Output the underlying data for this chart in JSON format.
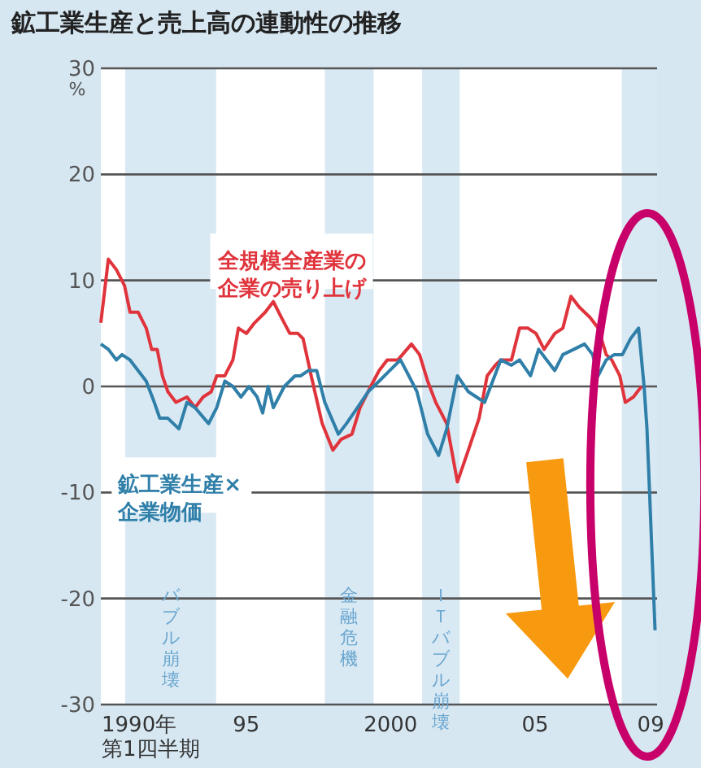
{
  "chart_data": {
    "type": "line",
    "title": "鉱工業生産と売上高の連動性の推移",
    "ylabel": "%",
    "xlim": [
      1990,
      2009.25
    ],
    "xticks": [
      {
        "value": 1990,
        "label": "1990年第1四半期"
      },
      {
        "value": 1995,
        "label": "95"
      },
      {
        "value": 2000,
        "label": "2000"
      },
      {
        "value": 2005,
        "label": "05"
      },
      {
        "value": 2009,
        "label": "09"
      }
    ],
    "ylim": [
      -30,
      30
    ],
    "yticks": [
      -30,
      -20,
      -10,
      0,
      10,
      20,
      30
    ],
    "grid": "y",
    "legend": false,
    "marker": "none",
    "series": [
      {
        "name": "全規模全産業の企業の売り上げ",
        "color": "#e0343c",
        "x": [
          1990.0,
          1990.26,
          1990.54,
          1990.82,
          1991.01,
          1991.29,
          1991.57,
          1991.76,
          1991.95,
          1992.13,
          1992.32,
          1992.6,
          1992.98,
          1993.26,
          1993.54,
          1993.82,
          1994.01,
          1994.29,
          1994.57,
          1994.76,
          1995.04,
          1995.32,
          1995.69,
          1995.97,
          1996.25,
          1996.54,
          1996.82,
          1997.0,
          1997.28,
          1997.66,
          1998.03,
          1998.31,
          1998.69,
          1998.97,
          1999.34,
          1999.63,
          1999.91,
          2000.28,
          2000.75,
          2001.03,
          2001.31,
          2001.59,
          2001.97,
          2002.34,
          2002.72,
          2003.09,
          2003.37,
          2003.65,
          2003.84,
          2004.21,
          2004.49,
          2004.78,
          2005.06,
          2005.34,
          2005.71,
          2005.99,
          2006.27,
          2006.55,
          2006.93,
          2007.21,
          2007.49,
          2007.68,
          2007.96,
          2008.15,
          2008.43,
          2008.71
        ],
        "values": [
          6,
          12,
          11,
          9.5,
          7,
          7,
          5.5,
          3.5,
          3.5,
          1,
          -0.5,
          -1.5,
          -1,
          -2,
          -1,
          -0.5,
          1,
          1,
          2.5,
          5.5,
          5,
          6,
          7,
          8,
          6.5,
          5,
          5,
          4.5,
          1,
          -3.5,
          -6,
          -5,
          -4.5,
          -2,
          0,
          1.5,
          2.5,
          2.5,
          4,
          3,
          0.5,
          -1.5,
          -3.5,
          -9,
          -6,
          -3,
          1,
          2,
          2.5,
          2.5,
          5.5,
          5.5,
          5,
          3.5,
          5,
          5.5,
          8.5,
          7.5,
          6.5,
          5.5,
          3,
          2.5,
          1,
          -1.5,
          -1,
          0
        ]
      },
      {
        "name": "鉱工業生産×企業物価",
        "color": "#2f7fa9",
        "x": [
          1990.0,
          1990.26,
          1990.54,
          1990.73,
          1991.01,
          1991.29,
          1991.57,
          1991.85,
          1992.04,
          1992.32,
          1992.7,
          1992.98,
          1993.26,
          1993.73,
          1994.01,
          1994.29,
          1994.57,
          1994.85,
          1995.13,
          1995.41,
          1995.6,
          1995.79,
          1995.97,
          1996.35,
          1996.72,
          1996.91,
          1997.19,
          1997.47,
          1997.75,
          1998.22,
          1998.5,
          1998.88,
          1999.25,
          1999.63,
          2000.0,
          2000.37,
          2000.66,
          2000.94,
          2001.31,
          2001.69,
          2001.97,
          2002.34,
          2002.72,
          2003.0,
          2003.28,
          2003.56,
          2003.84,
          2004.21,
          2004.49,
          2004.87,
          2005.15,
          2005.43,
          2005.71,
          2005.99,
          2006.37,
          2006.74,
          2007.02,
          2007.21,
          2007.49,
          2007.77,
          2008.05,
          2008.33,
          2008.61,
          2008.8,
          2008.9,
          2008.99,
          2009.18
        ],
        "values": [
          4,
          3.5,
          2.5,
          3,
          2.5,
          1.5,
          0.5,
          -1.5,
          -3,
          -3,
          -4,
          -1.5,
          -2,
          -3.5,
          -2,
          0.5,
          0,
          -1,
          0,
          -1,
          -2.5,
          0,
          -2,
          0,
          1,
          1,
          1.5,
          1.5,
          -1.5,
          -4.5,
          -3.5,
          -2,
          -0.5,
          0.5,
          1.5,
          2.5,
          1,
          -0.5,
          -4.5,
          -6.5,
          -4,
          1,
          -0.5,
          -1,
          -1.5,
          0.5,
          2.5,
          2,
          2.5,
          1,
          3.5,
          2.5,
          1.5,
          3,
          3.5,
          4,
          3,
          1,
          2.5,
          3,
          3,
          4.5,
          5.5,
          0,
          -4,
          -10,
          -23
        ]
      }
    ],
    "bands": [
      {
        "axis": "x",
        "from": 1990.84,
        "to": 1993.99,
        "label": "バブル崩壊",
        "color": "#d9e9f4"
      },
      {
        "axis": "x",
        "from": 1997.75,
        "to": 1999.44,
        "label": "金融危機",
        "color": "#d9e9f4"
      },
      {
        "axis": "x",
        "from": 2001.12,
        "to": 2002.42,
        "label": "ＩＴバブル崩壊",
        "color": "#d9e9f4"
      },
      {
        "axis": "x",
        "from": 2008.03,
        "to": 2009.25,
        "label": null,
        "color": "#d9e9f4"
      }
    ]
  }
}
